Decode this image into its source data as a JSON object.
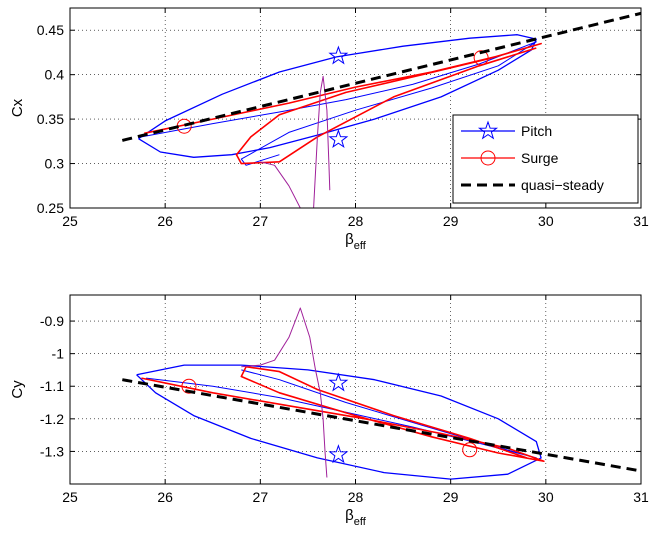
{
  "chart_data": [
    {
      "type": "line",
      "xlabel": "β",
      "xlabel_sub": "eff",
      "ylabel": "Cx",
      "xlim": [
        25,
        31
      ],
      "ylim": [
        0.25,
        0.475
      ],
      "xticks": [
        25,
        26,
        27,
        28,
        29,
        30,
        31
      ],
      "yticks": [
        0.25,
        0.3,
        0.35,
        0.4,
        0.45
      ],
      "ytick_labels": [
        "0.25",
        "0.3",
        "0.35",
        "0.4",
        "0.45"
      ],
      "grid": true,
      "legend": {
        "placement": "bottom-right",
        "entries": [
          "Pitch",
          "Surge",
          "quasi−steady"
        ]
      },
      "colors": {
        "pitch": "#0000ff",
        "surge": "#ff0000",
        "quasi": "#000000"
      },
      "series": [
        {
          "name": "Pitch",
          "style": "loop",
          "color": "#0000ff",
          "marker": "pentagram",
          "x": [
            25.72,
            26.0,
            26.6,
            27.2,
            27.8,
            28.5,
            29.2,
            29.7,
            29.9,
            29.85,
            29.5,
            28.9,
            28.2,
            27.6,
            27.1,
            26.7,
            26.3,
            25.95,
            25.72
          ],
          "y": [
            0.328,
            0.348,
            0.378,
            0.403,
            0.42,
            0.432,
            0.441,
            0.445,
            0.44,
            0.428,
            0.405,
            0.375,
            0.35,
            0.332,
            0.318,
            0.31,
            0.307,
            0.313,
            0.328
          ],
          "marker_x": [
            27.82,
            27.82
          ],
          "marker_y": [
            0.421,
            0.327
          ]
        },
        {
          "name": "Pitch",
          "style": "inner",
          "color": "#0000ff",
          "x": [
            25.75,
            26.5,
            27.2,
            27.9,
            28.6,
            29.3,
            29.9,
            29.5,
            28.8,
            28.0,
            27.3,
            26.8,
            26.85,
            27.2
          ],
          "y": [
            0.33,
            0.345,
            0.358,
            0.372,
            0.389,
            0.412,
            0.437,
            0.41,
            0.385,
            0.36,
            0.335,
            0.305,
            0.298,
            0.31
          ]
        },
        {
          "name": "Surge",
          "style": "loop",
          "color": "#ff0000",
          "marker": "circle",
          "x": [
            25.78,
            26.5,
            27.3,
            28.0,
            28.8,
            29.5,
            29.95,
            29.4,
            28.7,
            27.9,
            27.2,
            26.9,
            26.75,
            26.8,
            27.2,
            27.6,
            28.4,
            29.3,
            29.9
          ],
          "y": [
            0.334,
            0.35,
            0.368,
            0.386,
            0.403,
            0.421,
            0.435,
            0.418,
            0.4,
            0.38,
            0.355,
            0.33,
            0.31,
            0.3,
            0.302,
            0.33,
            0.375,
            0.41,
            0.43
          ],
          "marker_x": [
            26.2,
            29.32
          ],
          "marker_y": [
            0.342,
            0.419
          ]
        },
        {
          "name": "Surge",
          "style": "spike",
          "color": "#a0209a",
          "x": [
            27.0,
            27.15,
            27.3,
            27.42,
            27.5,
            27.56,
            27.6,
            27.63,
            27.66,
            27.7,
            27.72,
            27.73
          ],
          "y": [
            0.302,
            0.298,
            0.275,
            0.25,
            0.22,
            0.25,
            0.33,
            0.38,
            0.398,
            0.36,
            0.3,
            0.27
          ]
        },
        {
          "name": "quasi−steady",
          "style": "dashed",
          "color": "#000000",
          "x": [
            25.55,
            31
          ],
          "y": [
            0.326,
            0.469
          ]
        }
      ]
    },
    {
      "type": "line",
      "xlabel": "β",
      "xlabel_sub": "eff",
      "ylabel": "Cy",
      "xlim": [
        25,
        31
      ],
      "ylim": [
        -1.4,
        -0.82
      ],
      "xticks": [
        25,
        26,
        27,
        28,
        29,
        30,
        31
      ],
      "yticks": [
        -0.9,
        -1,
        -1.1,
        -1.2,
        -1.3
      ],
      "ytick_labels": [
        "-0.9",
        "-1",
        "-1.1",
        "-1.2",
        "-1.3"
      ],
      "grid": true,
      "series": [
        {
          "name": "Pitch",
          "style": "loop",
          "color": "#0000ff",
          "marker": "pentagram",
          "x": [
            25.7,
            26.2,
            26.8,
            27.5,
            28.2,
            28.9,
            29.5,
            29.9,
            29.95,
            29.6,
            29.0,
            28.3,
            27.6,
            26.9,
            26.3,
            25.9,
            25.7
          ],
          "y": [
            -1.065,
            -1.035,
            -1.035,
            -1.05,
            -1.08,
            -1.13,
            -1.2,
            -1.27,
            -1.32,
            -1.37,
            -1.385,
            -1.365,
            -1.32,
            -1.26,
            -1.19,
            -1.12,
            -1.065
          ],
          "marker_x": [
            27.82,
            27.82
          ],
          "marker_y": [
            -1.09,
            -1.31
          ]
        },
        {
          "name": "Pitch",
          "style": "inner",
          "color": "#0000ff",
          "x": [
            25.8,
            26.5,
            27.2,
            27.9,
            28.6,
            29.3,
            29.9,
            29.4,
            28.7,
            27.9,
            27.2,
            26.8
          ],
          "y": [
            -1.075,
            -1.1,
            -1.135,
            -1.18,
            -1.225,
            -1.275,
            -1.32,
            -1.28,
            -1.22,
            -1.15,
            -1.08,
            -1.05
          ]
        },
        {
          "name": "Surge",
          "style": "loop",
          "color": "#ff0000",
          "marker": "circle",
          "x": [
            25.75,
            26.5,
            27.3,
            28.1,
            28.9,
            29.6,
            29.98,
            29.5,
            28.8,
            28.0,
            27.2,
            26.8,
            26.85,
            27.2,
            27.6,
            28.4,
            29.2,
            29.8
          ],
          "y": [
            -1.075,
            -1.12,
            -1.16,
            -1.2,
            -1.245,
            -1.29,
            -1.33,
            -1.305,
            -1.255,
            -1.19,
            -1.12,
            -1.07,
            -1.04,
            -1.055,
            -1.11,
            -1.19,
            -1.26,
            -1.32
          ],
          "marker_x": [
            26.25,
            29.2
          ],
          "marker_y": [
            -1.1,
            -1.295
          ]
        },
        {
          "name": "Surge",
          "style": "spike",
          "color": "#a0209a",
          "x": [
            26.8,
            27.0,
            27.15,
            27.3,
            27.42,
            27.52,
            27.58,
            27.63,
            27.66,
            27.68,
            27.7
          ],
          "y": [
            -1.04,
            -1.035,
            -1.02,
            -0.95,
            -0.86,
            -0.95,
            -1.05,
            -1.12,
            -1.2,
            -1.3,
            -1.38
          ]
        },
        {
          "name": "quasi−steady",
          "style": "dashed",
          "color": "#000000",
          "x": [
            25.55,
            31
          ],
          "y": [
            -1.08,
            -1.36
          ]
        }
      ]
    }
  ]
}
